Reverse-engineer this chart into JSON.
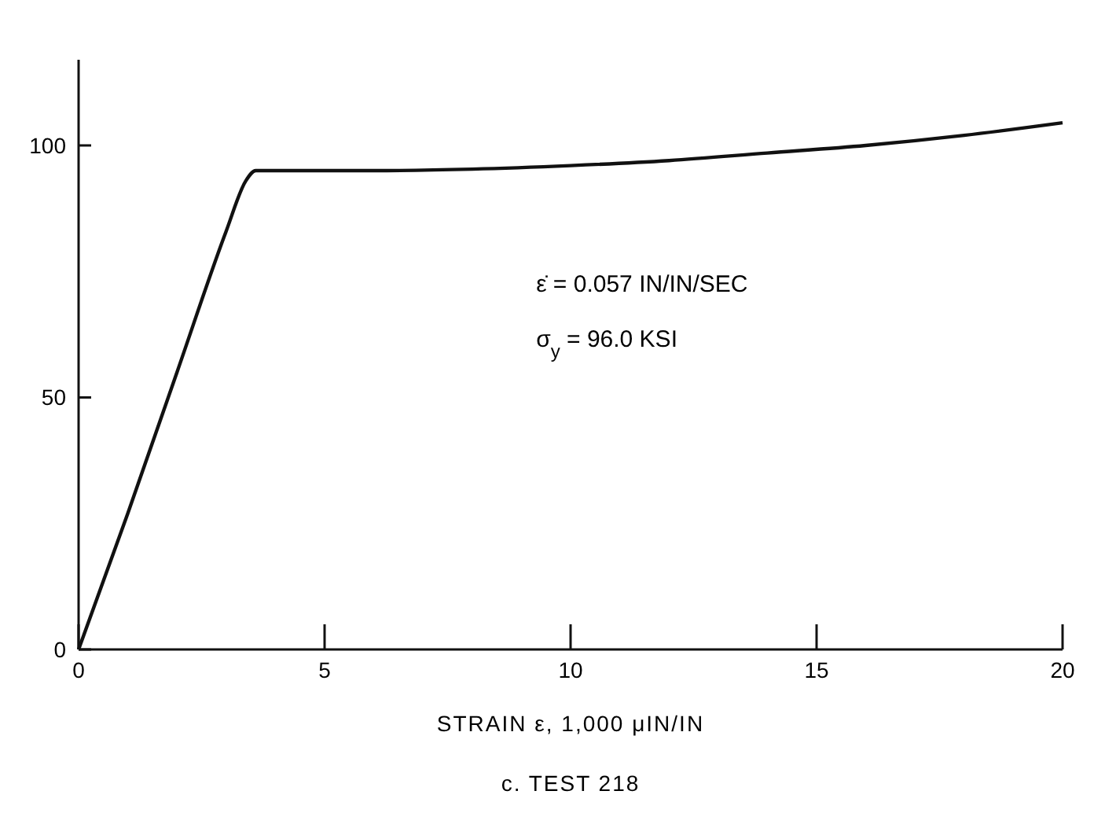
{
  "chart_data": {
    "type": "line",
    "title": "c. TEST 218",
    "xlabel": "STRAIN ε, 1,000 μIN/IN",
    "annotations": [
      "ε̇ = 0.057 IN/IN/SEC",
      "σ$_{y}$ = 96.0 KSI"
    ],
    "x": [
      0,
      1,
      2,
      3,
      3.4,
      3.6,
      3.8,
      4.5,
      6,
      8,
      10,
      12,
      14,
      16,
      18,
      20
    ],
    "series": [
      {
        "color": "#111111",
        "values": [
          0,
          27,
          55,
          83,
          93,
          95,
          95,
          95,
          95,
          95.3,
          96,
          97,
          98.5,
          100,
          102,
          104.5
        ]
      }
    ],
    "xlim": [
      0,
      20
    ],
    "xticks": [
      0,
      5,
      10,
      15,
      20
    ],
    "ylim": [
      0,
      117
    ],
    "yticks": [
      0,
      50,
      100
    ],
    "grid": false,
    "marker": "none",
    "line_style": "solid"
  }
}
